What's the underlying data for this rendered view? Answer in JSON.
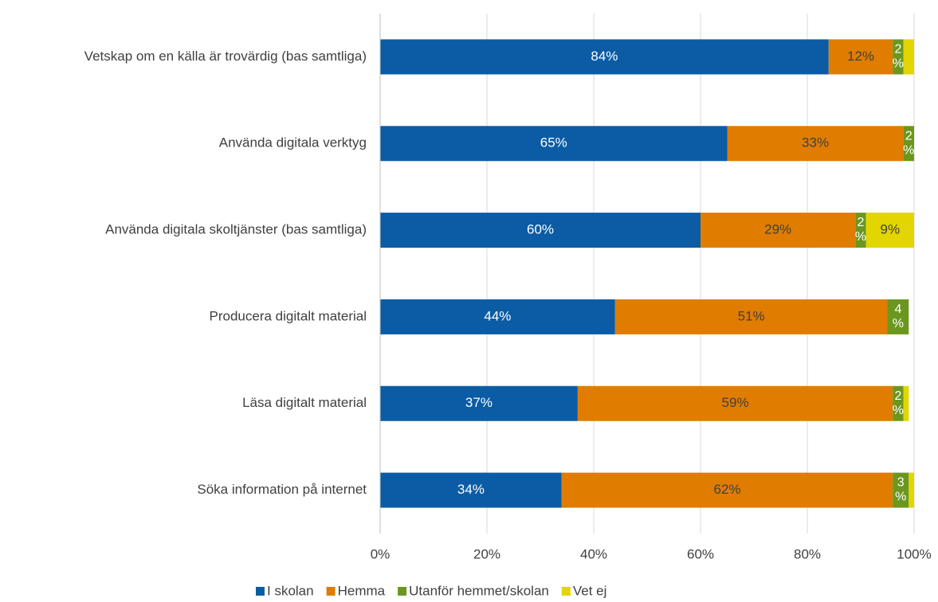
{
  "chart_data": {
    "type": "stacked-bar-horizontal",
    "categories": [
      "Vetskap om en källa är trovärdig (bas samtliga)",
      "Använda digitala verktyg",
      "Använda digitala skoltjänster (bas samtliga)",
      "Producera digitalt material",
      "Läsa digitalt material",
      "Söka information på internet"
    ],
    "series": [
      {
        "name": "I skolan",
        "color": "#0b5ca4",
        "values": [
          84,
          65,
          60,
          44,
          37,
          34
        ],
        "value_labels": [
          "84%",
          "65%",
          "60%",
          "44%",
          "37%",
          "34%"
        ]
      },
      {
        "name": "Hemma",
        "color": "#e07c00",
        "values": [
          12,
          33,
          29,
          51,
          59,
          62
        ],
        "value_labels": [
          "12%",
          "33%",
          "29%",
          "51%",
          "59%",
          "62%"
        ]
      },
      {
        "name": "Utanför hemmet/skolan",
        "color": "#6b971f",
        "values": [
          2,
          2,
          2,
          4,
          2,
          3
        ],
        "value_labels": [
          "2%",
          "2%",
          "2%",
          "4%",
          "2%",
          "3%"
        ]
      },
      {
        "name": "Vet ej",
        "color": "#e2d500",
        "values": [
          2,
          null,
          9,
          null,
          1,
          1
        ],
        "value_labels": [
          null,
          null,
          "9%",
          null,
          null,
          null
        ]
      }
    ],
    "xlim": [
      0,
      100
    ],
    "xticks": [
      {
        "value": 0,
        "label": "0%"
      },
      {
        "value": 20,
        "label": "20%"
      },
      {
        "value": 40,
        "label": "40%"
      },
      {
        "value": 60,
        "label": "60%"
      },
      {
        "value": 80,
        "label": "80%"
      },
      {
        "value": 100,
        "label": "100%"
      }
    ],
    "grid": true,
    "legend": "bottom"
  }
}
